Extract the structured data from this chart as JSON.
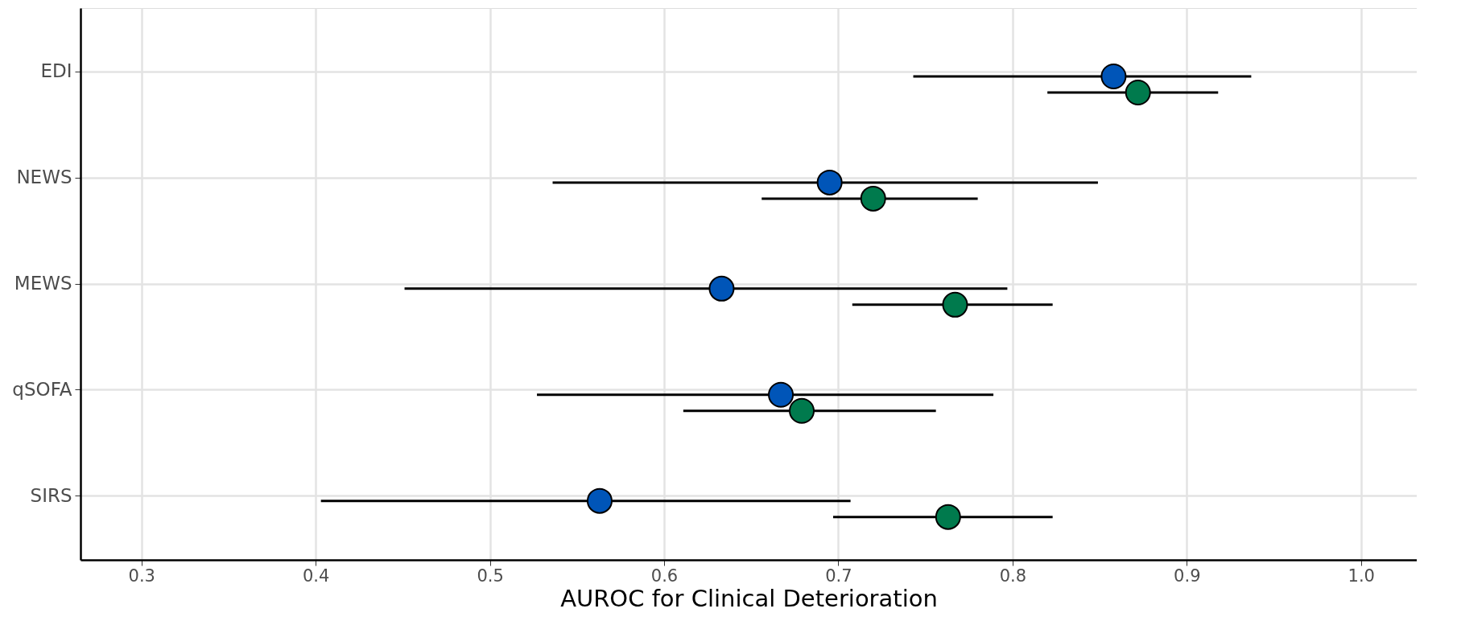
{
  "chart_data": {
    "type": "scatter",
    "orientation": "horizontal",
    "xlabel": "AUROC for Clinical Deterioration",
    "categories": [
      "EDI",
      "NEWS",
      "MEWS",
      "qSOFA",
      "SIRS"
    ],
    "series": [
      {
        "color": "#0055b8",
        "values": [
          0.858,
          0.695,
          0.633,
          0.667,
          0.563
        ],
        "errors": [
          [
            0.743,
            0.937
          ],
          [
            0.536,
            0.849
          ],
          [
            0.451,
            0.797
          ],
          [
            0.527,
            0.789
          ],
          [
            0.403,
            0.707
          ]
        ]
      },
      {
        "color": "#007a4d",
        "values": [
          0.872,
          0.72,
          0.767,
          0.679,
          0.763
        ],
        "errors": [
          [
            0.82,
            0.918
          ],
          [
            0.656,
            0.78
          ],
          [
            0.708,
            0.823
          ],
          [
            0.611,
            0.756
          ],
          [
            0.697,
            0.823
          ]
        ]
      }
    ],
    "xlim": [
      0.265,
      1.032
    ],
    "xticks": [
      0.3,
      0.4,
      0.5,
      0.6,
      0.7,
      0.8,
      0.9,
      {
        "value": 1,
        "label": "1.0"
      }
    ],
    "grid": true,
    "marker": "circle"
  }
}
